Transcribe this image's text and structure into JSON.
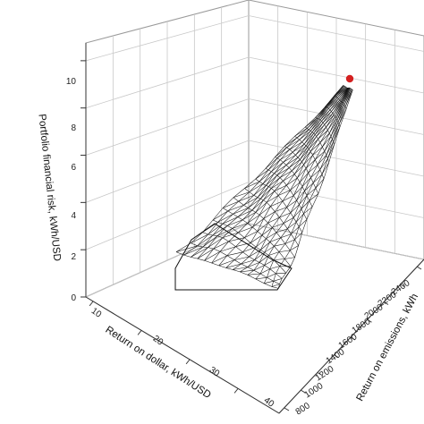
{
  "chart_data": {
    "type": "surface3d",
    "title": "",
    "zlabel": "Portfolio financial risk, kWh/USD",
    "xlabel": "Return on dollar, kWh/USD",
    "ylabel": "Return on emissions, kWh",
    "z_ticks": [
      "0",
      "2",
      "4",
      "6",
      "8",
      "10"
    ],
    "x_ticks": [
      "10",
      "20",
      "30",
      "40"
    ],
    "y_ticks": [
      "800",
      "1000",
      "1200",
      "1400",
      "1600",
      "1800",
      "2000",
      "2200",
      "2400"
    ],
    "zlim": [
      0,
      10
    ],
    "xlim": [
      10,
      40
    ],
    "ylim": [
      800,
      2400
    ],
    "grid": true,
    "marker": {
      "label": "peak",
      "color": "#d42020",
      "z": 10
    },
    "colors": {
      "mesh": "#111111",
      "grid": "#c8c8c8",
      "marker": "#d42020"
    }
  }
}
